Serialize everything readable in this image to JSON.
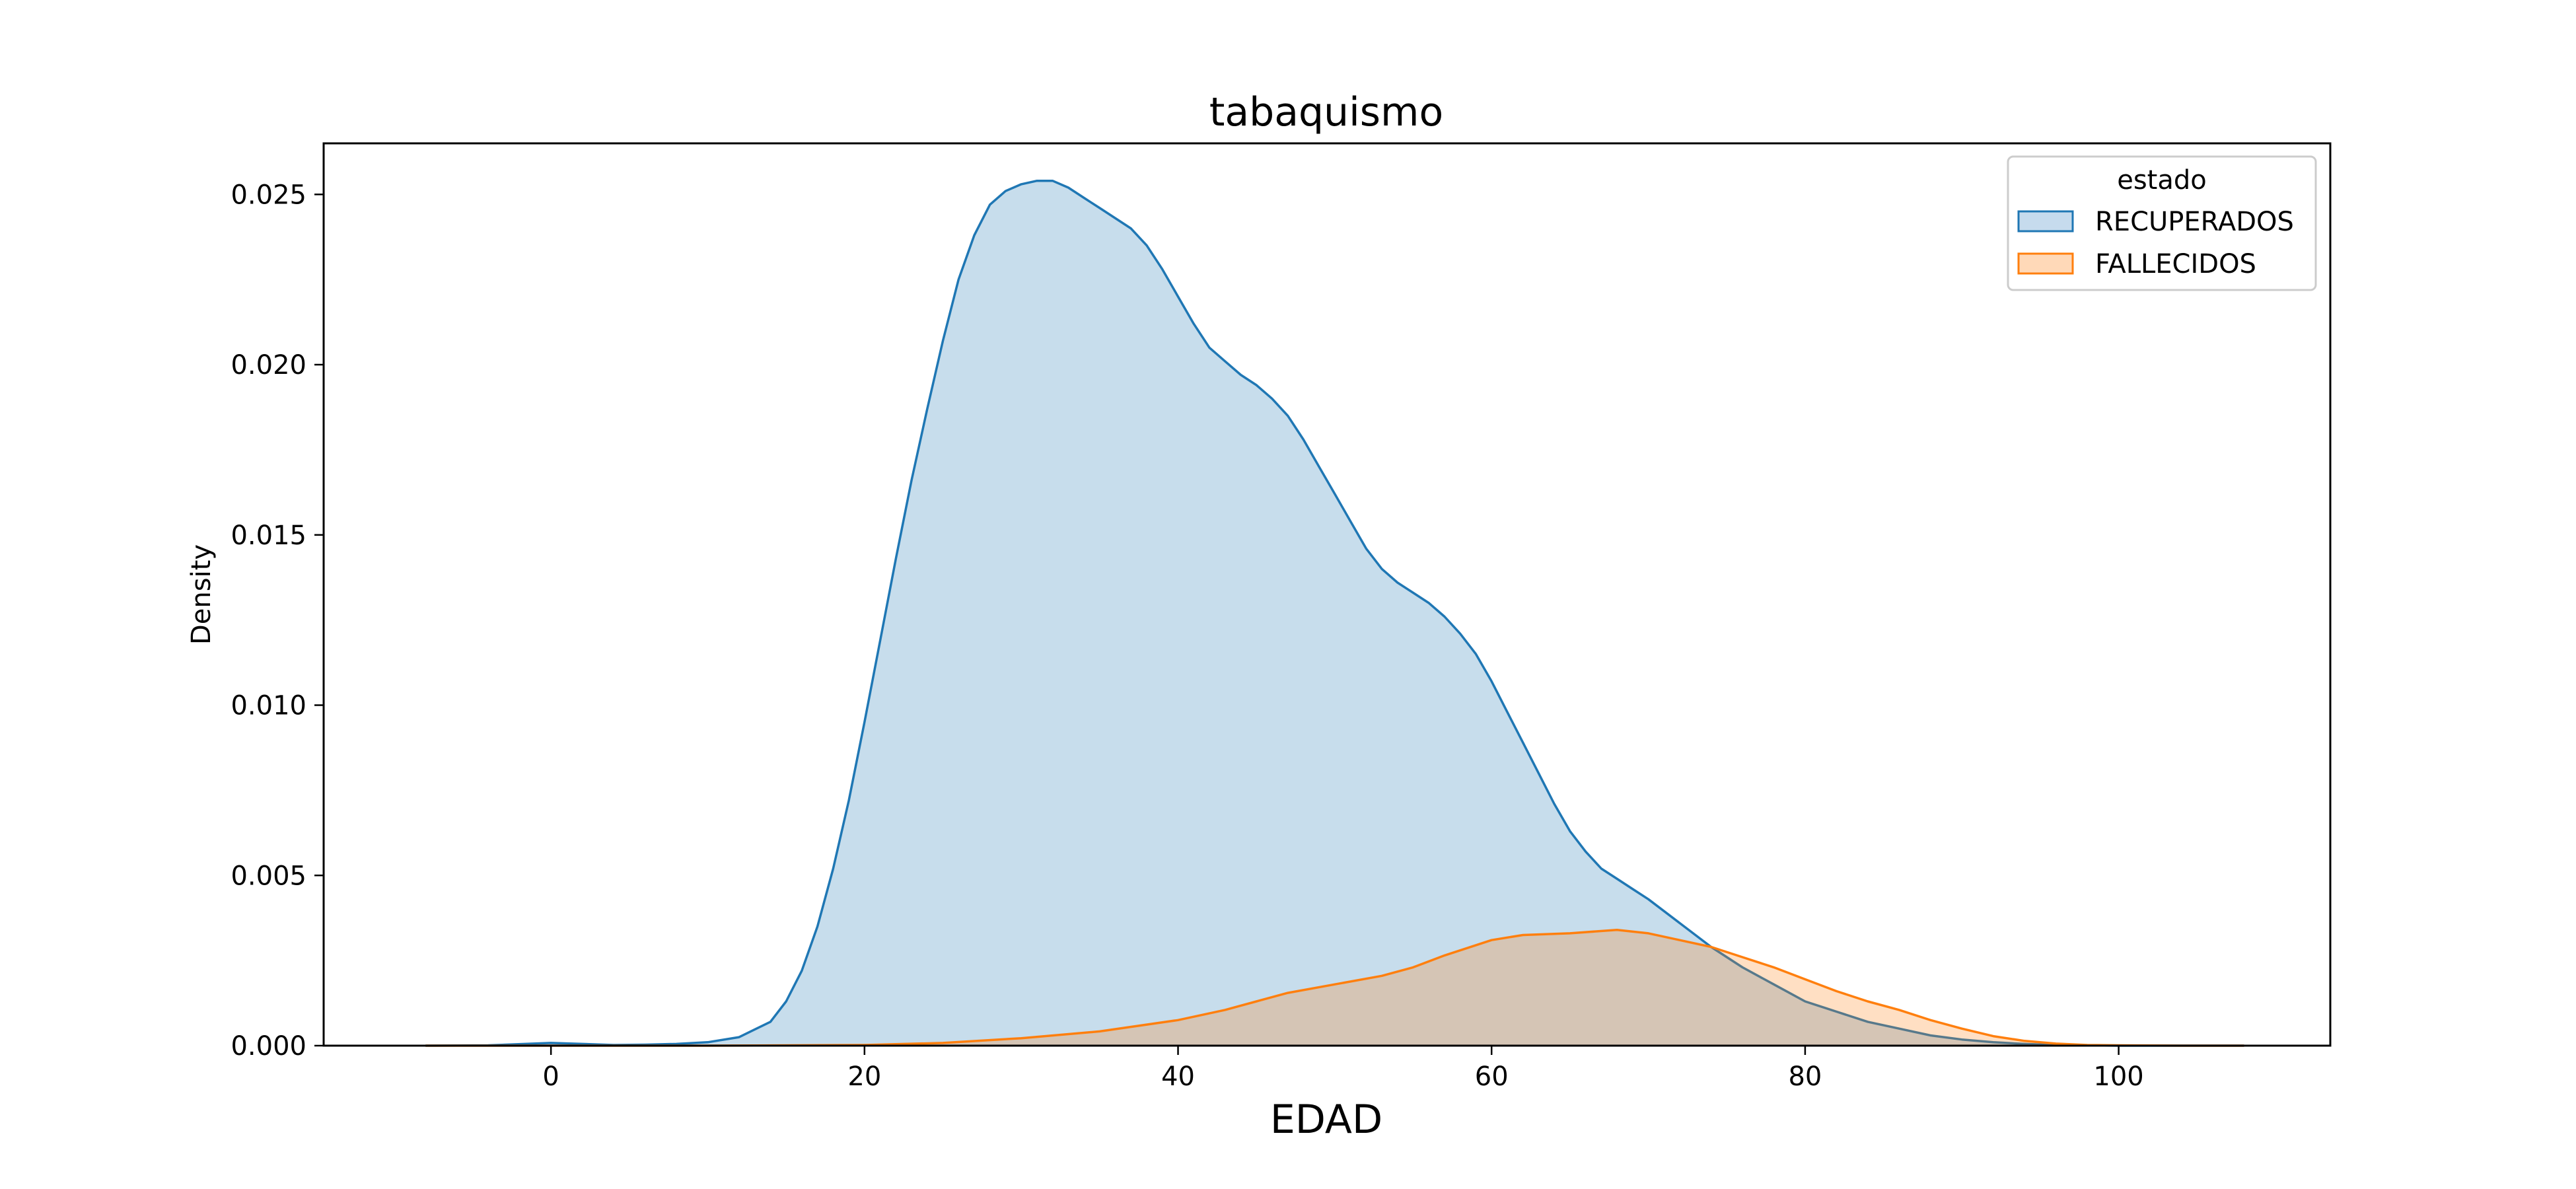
{
  "chart_data": {
    "type": "area",
    "title": "tabaquismo",
    "xlabel": "EDAD",
    "ylabel": "Density",
    "xlim": [
      -14.5,
      113.5
    ],
    "ylim": [
      0,
      0.0265
    ],
    "xticks": [
      0,
      20,
      40,
      60,
      80,
      100
    ],
    "yticks": [
      0.0,
      0.005,
      0.01,
      0.015,
      0.02,
      0.025
    ],
    "ytick_labels": [
      "0.000",
      "0.005",
      "0.010",
      "0.015",
      "0.020",
      "0.025"
    ],
    "grid": false,
    "legend": {
      "title": "estado",
      "placement": "upper right"
    },
    "series": [
      {
        "name": "RECUPERADOS",
        "color": "#1f77b4",
        "fill": "#c6dbed",
        "x": [
          -8,
          -4,
          0,
          2,
          4,
          6,
          8,
          10,
          12,
          14,
          15,
          16,
          17,
          18,
          19,
          20,
          21,
          22,
          23,
          24,
          25,
          26,
          27,
          28,
          29,
          30,
          31,
          32,
          33,
          34,
          35,
          36,
          37,
          38,
          39,
          40,
          41,
          42,
          43,
          44,
          45,
          46,
          47,
          48,
          49,
          50,
          51,
          52,
          53,
          54,
          55,
          56,
          57,
          58,
          59,
          60,
          61,
          62,
          63,
          64,
          65,
          66,
          67,
          68,
          69,
          70,
          72,
          74,
          76,
          78,
          80,
          82,
          84,
          86,
          88,
          90,
          92,
          94,
          96,
          98,
          100,
          104,
          108
        ],
        "y": [
          0.0,
          1e-05,
          8e-05,
          5e-05,
          2e-05,
          3e-05,
          5e-05,
          0.0001,
          0.00025,
          0.0007,
          0.0013,
          0.0022,
          0.0035,
          0.0052,
          0.0072,
          0.0095,
          0.0119,
          0.0143,
          0.0166,
          0.0187,
          0.0207,
          0.0225,
          0.0238,
          0.0247,
          0.0251,
          0.0253,
          0.0254,
          0.0254,
          0.0252,
          0.0249,
          0.0246,
          0.0243,
          0.024,
          0.0235,
          0.0228,
          0.022,
          0.0212,
          0.0205,
          0.0201,
          0.0197,
          0.0194,
          0.019,
          0.0185,
          0.0178,
          0.017,
          0.0162,
          0.0154,
          0.0146,
          0.014,
          0.0136,
          0.0133,
          0.013,
          0.0126,
          0.0121,
          0.0115,
          0.0107,
          0.0098,
          0.0089,
          0.008,
          0.0071,
          0.0063,
          0.0057,
          0.0052,
          0.0049,
          0.0046,
          0.0043,
          0.0036,
          0.0029,
          0.0023,
          0.0018,
          0.0013,
          0.001,
          0.0007,
          0.0005,
          0.0003,
          0.00018,
          0.0001,
          5e-05,
          2e-05,
          1e-05,
          0.0,
          0.0,
          0.0
        ]
      },
      {
        "name": "FALLECIDOS",
        "color": "#ff7f0e",
        "fill": "#ffd9b8",
        "x": [
          -8,
          0,
          10,
          20,
          25,
          30,
          35,
          40,
          43,
          45,
          47,
          50,
          53,
          55,
          57,
          60,
          62,
          65,
          68,
          70,
          72,
          74,
          76,
          78,
          80,
          82,
          84,
          86,
          88,
          90,
          92,
          94,
          96,
          98,
          100,
          104,
          108
        ],
        "y": [
          0.0,
          0.0,
          0.0,
          2e-05,
          8e-05,
          0.00022,
          0.00042,
          0.00075,
          0.00105,
          0.0013,
          0.00155,
          0.0018,
          0.00205,
          0.0023,
          0.00265,
          0.0031,
          0.00325,
          0.0033,
          0.0034,
          0.0033,
          0.0031,
          0.0029,
          0.0026,
          0.0023,
          0.00195,
          0.0016,
          0.0013,
          0.00105,
          0.00075,
          0.0005,
          0.00028,
          0.00014,
          6e-05,
          2e-05,
          1e-05,
          0.0,
          0.0
        ]
      }
    ]
  }
}
